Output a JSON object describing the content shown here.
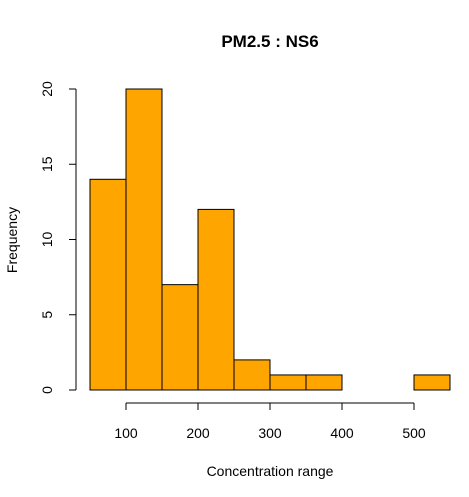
{
  "chart_data": {
    "type": "bar",
    "title": "PM2.5 : NS6",
    "xlabel": "Concentration range",
    "ylabel": "Frequency",
    "bins": [
      {
        "from": 50,
        "to": 100,
        "count": 14
      },
      {
        "from": 100,
        "to": 150,
        "count": 20
      },
      {
        "from": 150,
        "to": 200,
        "count": 7
      },
      {
        "from": 200,
        "to": 250,
        "count": 12
      },
      {
        "from": 250,
        "to": 300,
        "count": 2
      },
      {
        "from": 300,
        "to": 350,
        "count": 1
      },
      {
        "from": 350,
        "to": 400,
        "count": 1
      },
      {
        "from": 400,
        "to": 450,
        "count": 0
      },
      {
        "from": 450,
        "to": 500,
        "count": 0
      },
      {
        "from": 500,
        "to": 550,
        "count": 1
      }
    ],
    "xlim": [
      50,
      550
    ],
    "ylim": [
      0,
      20
    ],
    "x_ticks": [
      100,
      200,
      300,
      400,
      500
    ],
    "y_ticks": [
      0,
      5,
      10,
      15,
      20
    ],
    "bar_color": "#FFA500",
    "grid": false
  }
}
